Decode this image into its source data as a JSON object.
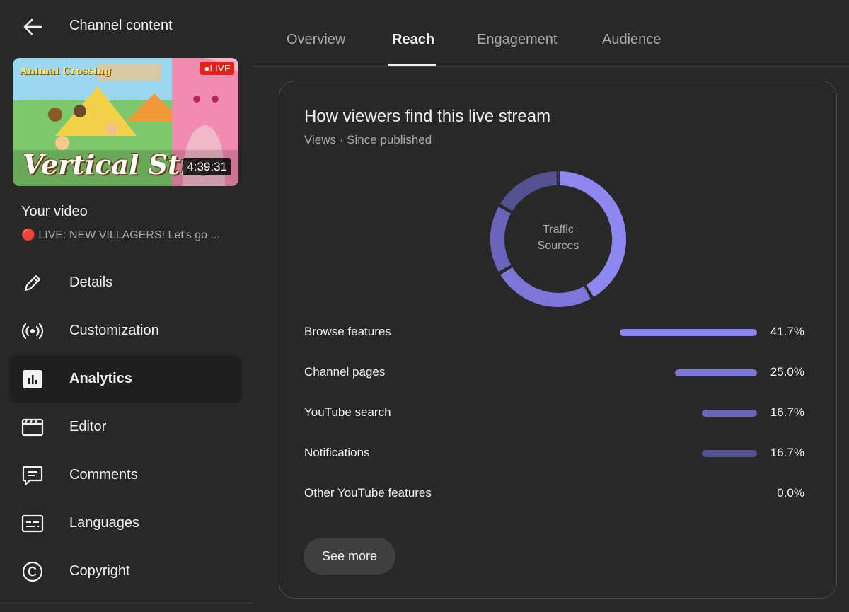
{
  "sidebar": {
    "header_title": "Channel content",
    "thumbnail": {
      "live_badge": "●LIVE",
      "duration": "4:39:31",
      "overlay_text": "Vertical Stre",
      "game_logo": "Animal Crossing"
    },
    "your_video_label": "Your video",
    "video_title": "🔴 LIVE: NEW VILLAGERS! Let's go ...",
    "items": [
      {
        "name": "details",
        "label": "Details",
        "icon": "pencil-icon",
        "active": false
      },
      {
        "name": "customization",
        "label": "Customization",
        "icon": "broadcast-icon",
        "active": false
      },
      {
        "name": "analytics",
        "label": "Analytics",
        "icon": "analytics-icon",
        "active": true
      },
      {
        "name": "editor",
        "label": "Editor",
        "icon": "clapperboard-icon",
        "active": false
      },
      {
        "name": "comments",
        "label": "Comments",
        "icon": "comment-icon",
        "active": false
      },
      {
        "name": "languages",
        "label": "Languages",
        "icon": "subtitles-icon",
        "active": false
      },
      {
        "name": "copyright",
        "label": "Copyright",
        "icon": "copyright-icon",
        "active": false
      }
    ]
  },
  "tabs": [
    {
      "label": "Overview",
      "active": false
    },
    {
      "label": "Reach",
      "active": true
    },
    {
      "label": "Engagement",
      "active": false
    },
    {
      "label": "Audience",
      "active": false
    }
  ],
  "card": {
    "title": "How viewers find this live stream",
    "subtitle": "Views · Since published",
    "donut_center_label_1": "Traffic",
    "donut_center_label_2": "Sources",
    "see_more_label": "See more"
  },
  "colors": {
    "background": "#282828",
    "browse": "#8f87f0",
    "channel": "#7d76d8",
    "search": "#6b64bd",
    "notifications": "#55508f",
    "other": "#3e3b5e"
  },
  "chart_data": {
    "type": "pie",
    "categories": [
      "Browse features",
      "Channel pages",
      "YouTube search",
      "Notifications",
      "Other YouTube features"
    ],
    "values": [
      41.7,
      25.0,
      16.7,
      16.7,
      0.0
    ],
    "value_labels": [
      "41.7%",
      "25.0%",
      "16.7%",
      "16.7%",
      "0.0%"
    ],
    "title": "How viewers find this live stream"
  }
}
